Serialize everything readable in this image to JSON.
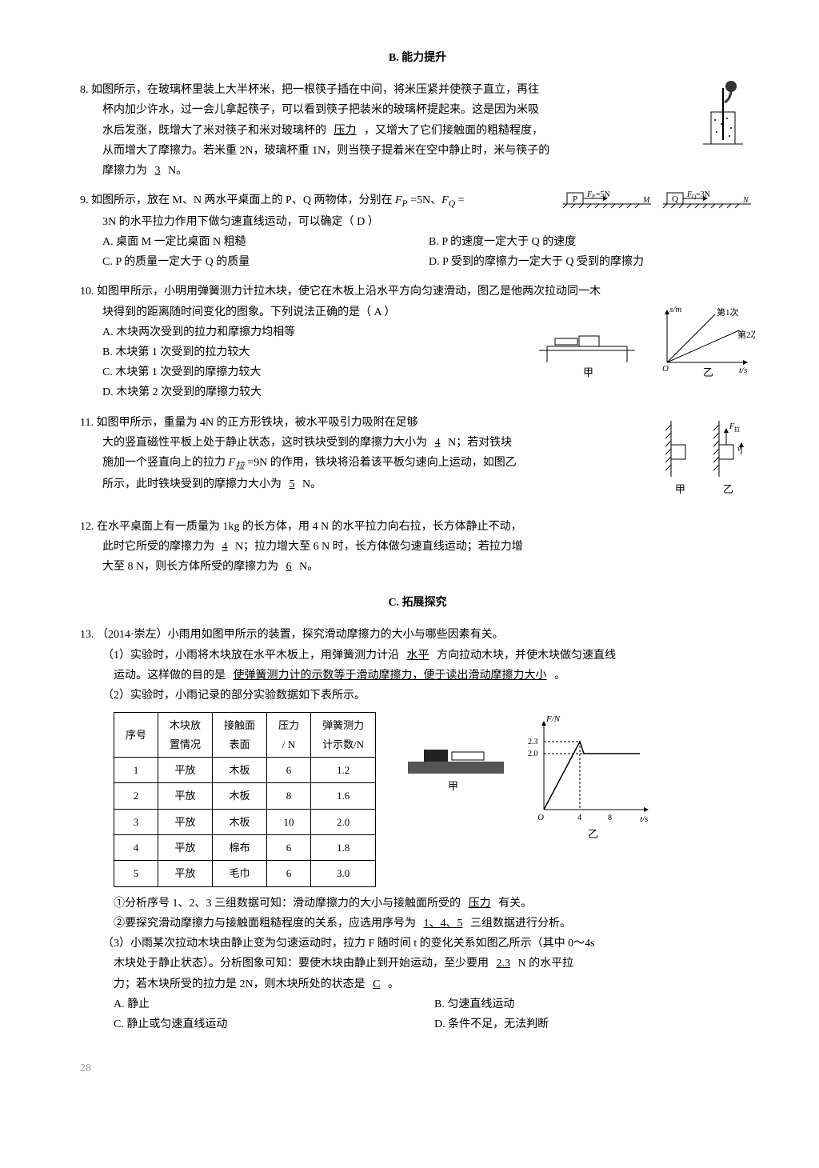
{
  "sections": {
    "B": "B. 能力提升",
    "C": "C. 拓展探究"
  },
  "q8": {
    "num": "8.",
    "line1": "如图所示，在玻璃杯里装上大半杯米，把一根筷子插在中间，将米压紧并使筷子直立，再往",
    "line2": "杯内加少许水，过一会儿拿起筷子，可以看到筷子把装米的玻璃杯提起来。这是因为米吸",
    "line3": "水后发涨，既增大了米对筷子和米对玻璃杯的",
    "ans1": "压力",
    "line3b": "，又增大了它们接触面的粗糙程度，",
    "line4": "从而增大了摩擦力。若米重 2N，玻璃杯重 1N，则当筷子提着米在空中静止时，米与筷子的",
    "line5": "摩擦力为",
    "ans2": "3",
    "line5b": "N。"
  },
  "q9": {
    "num": "9.",
    "line1a": "如图所示，放在 M、N 两水平桌面上的 P、Q 两物体，分别在 ",
    "line1b": "=5N、",
    "line1c": "=",
    "line2": "3N 的水平拉力作用下做匀速直线运动，可以确定（",
    "ans": "D",
    "line2b": "）",
    "optA": "A. 桌面 M 一定比桌面 N 粗糙",
    "optB": "B. P 的速度一定大于 Q 的速度",
    "optC": "C. P 的质量一定大于 Q 的质量",
    "optD": "D. P 受到的摩擦力一定大于 Q 受到的摩擦力",
    "figP": "P",
    "figQ": "Q",
    "figFP": "F_P=5N",
    "figFQ": "F_Q=3N",
    "figM": "M",
    "figN": "N"
  },
  "q10": {
    "num": "10.",
    "line1": "如图甲所示，小明用弹簧测力计拉木块，使它在木板上沿水平方向匀速滑动，图乙是他两次拉动同一木",
    "line2": "块得到的距离随时间变化的图象。下列说法正确的是（",
    "ans": "A",
    "line2b": "）",
    "optA": "A. 木块两次受到的拉力和摩擦力均相等",
    "optB": "B. 木块第 1 次受到的拉力较大",
    "optC": "C. 木块第 1 次受到的摩擦力较大",
    "optD": "D. 木块第 2 次受到的摩擦力较大",
    "figJia": "甲",
    "figYi": "乙",
    "axisY": "s/m",
    "axisX": "t/s",
    "line1Label": "第1次",
    "line2Label": "第2次"
  },
  "q11": {
    "num": "11.",
    "line1": "如图甲所示，重量为 4N 的正方形铁块，被水平吸引力吸附在足够",
    "line2": "大的竖直磁性平板上处于静止状态，这时铁块受到的摩擦力大小为",
    "ans1": "4",
    "line2b": "N；若对铁块",
    "line3a": "施加一个竖直向上的拉力 ",
    "line3b": "=9N 的作用，铁块将沿着该平板匀速向上运动，如图乙",
    "line4": "所示，此时铁块受到的摩擦力大小为",
    "ans2": "5",
    "line4b": "N。",
    "figJia": "甲",
    "figYi": "乙"
  },
  "q12": {
    "num": "12.",
    "line1": "在水平桌面上有一质量为 1kg 的长方体，用 4 N 的水平拉力向右拉，长方体静止不动，",
    "line2": "此时它所受的摩擦力为",
    "ans1": "4",
    "line2b": "N；拉力增大至 6 N 时，长方体做匀速直线运动；若拉力增",
    "line3": "大至 8 N，则长方体所受的摩擦力为",
    "ans2": "6",
    "line3b": "N。"
  },
  "q13": {
    "num": "13.",
    "line1": "（2014·崇左）小雨用如图甲所示的装置，探究滑动摩擦力的大小与哪些因素有关。",
    "p1a": "（1）实验时，小雨将木块放在水平木板上，用弹簧测力计沿",
    "p1ans1": "水平",
    "p1b": "方向拉动木块，并使木块做匀速直线",
    "p1c": "运动。这样做的目的是",
    "p1ans2": "使弹簧测力计的示数等于滑动摩擦力，便于读出滑动摩擦力大小",
    "p1d": "。",
    "p2": "（2）实验时，小雨记录的部分实验数据如下表所示。",
    "table": {
      "headers": [
        "序号",
        "木块放\n置情况",
        "接触面\n表面",
        "压力\n/ N",
        "弹簧测力\n计示数/N"
      ],
      "rows": [
        [
          "1",
          "平放",
          "木板",
          "6",
          "1.2"
        ],
        [
          "2",
          "平放",
          "木板",
          "8",
          "1.6"
        ],
        [
          "3",
          "平放",
          "木板",
          "10",
          "2.0"
        ],
        [
          "4",
          "平放",
          "棉布",
          "6",
          "1.8"
        ],
        [
          "5",
          "平放",
          "毛巾",
          "6",
          "3.0"
        ]
      ]
    },
    "chart": {
      "axisY": "F/N",
      "axisX": "t/s",
      "yTicks": [
        "2.3",
        "2.0"
      ],
      "xTicks": [
        "4",
        "8"
      ],
      "figJia": "甲",
      "figYi": "乙"
    },
    "p2a": "①分析序号 1、2、3 三组数据可知：滑动摩擦力的大小与接触面所受的",
    "p2ans1": "压力",
    "p2ab": "有关。",
    "p2b": "②要探究滑动摩擦力与接触面粗糙程度的关系，应选用序号为",
    "p2ans2": "1、4、5",
    "p2bb": "三组数据进行分析。",
    "p3a": "（3）小雨某次拉动木块由静止变为匀速运动时，拉力 F 随时间 t 的变化关系如图乙所示（其中 0～4s",
    "p3b": "木块处于静止状态）。分析图象可知：要使木块由静止到开始运动，至少要用",
    "p3ans1": "2.3",
    "p3bb": "N 的水平拉",
    "p3c": "力；若木块所受的拉力是 2N，则木块所处的状态是",
    "p3ans2": "C",
    "p3cb": "。",
    "optA": "A. 静止",
    "optB": "B. 匀速直线运动",
    "optC": "C. 静止或匀速直线运动",
    "optD": "D. 条件不足，无法判断"
  },
  "pageNum": "28"
}
